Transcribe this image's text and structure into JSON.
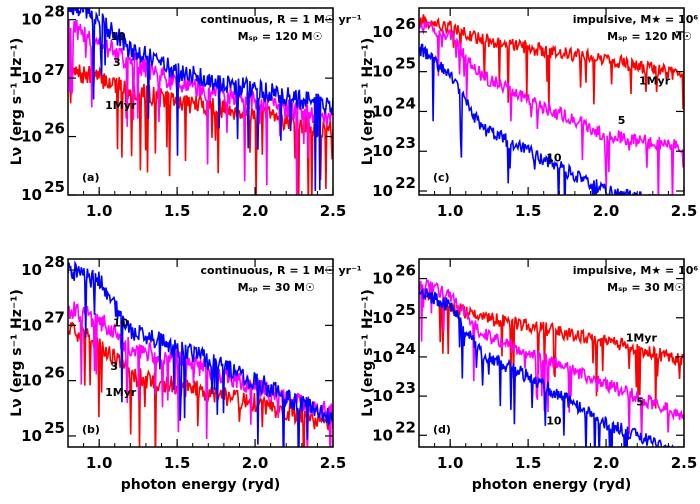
{
  "chart_data": [
    {
      "type": "line",
      "panel": "(a)",
      "annotation": [
        "continuous,  R = 1 M☉ yr⁻¹",
        "Mₛₚ = 120 M☉"
      ],
      "xlabel": "",
      "ylabel": "Lν  (erg s⁻¹ Hz⁻¹)",
      "xlim": [
        0.8,
        2.5
      ],
      "ylim_log10": [
        25,
        28.2
      ],
      "yscale": "log",
      "xticks": [
        "1.0",
        "1.5",
        "2.0",
        "2.5"
      ],
      "yticks": [
        {
          "base": "10",
          "exp": "25"
        },
        {
          "base": "10",
          "exp": "26"
        },
        {
          "base": "10",
          "exp": "27"
        },
        {
          "base": "10",
          "exp": "28"
        }
      ],
      "series": [
        {
          "name": "1Myr",
          "color": "#ff0000",
          "x": [
            0.8,
            1.0,
            1.2,
            1.5,
            2.0,
            2.5
          ],
          "log10_y": [
            27.1,
            27.0,
            26.8,
            26.6,
            26.4,
            26.1
          ]
        },
        {
          "name": "3",
          "color": "#ff00ff",
          "x": [
            0.8,
            1.0,
            1.2,
            1.5,
            2.0,
            2.5
          ],
          "log10_y": [
            27.9,
            27.6,
            27.3,
            26.9,
            26.6,
            26.3
          ]
        },
        {
          "name": "10",
          "color": "#0000ff",
          "x": [
            0.8,
            1.0,
            1.2,
            1.5,
            2.0,
            2.5
          ],
          "log10_y": [
            28.3,
            28.0,
            27.5,
            27.1,
            26.8,
            26.5
          ]
        }
      ]
    },
    {
      "type": "line",
      "panel": "(c)",
      "annotation": [
        "impulsive,  M★ = 10⁶ M☉",
        "Mₛₚ = 120 M☉"
      ],
      "xlabel": "",
      "ylabel": "Lν  (erg s⁻¹ Hz⁻¹)",
      "xlim": [
        0.8,
        2.5
      ],
      "ylim_log10": [
        21.9,
        26.6
      ],
      "yscale": "log",
      "xticks": [
        "1.0",
        "1.5",
        "2.0",
        "2.5"
      ],
      "yticks": [
        {
          "base": "10",
          "exp": "22"
        },
        {
          "base": "10",
          "exp": "23"
        },
        {
          "base": "10",
          "exp": "24"
        },
        {
          "base": "10",
          "exp": "25"
        },
        {
          "base": "10",
          "exp": "26"
        }
      ],
      "series": [
        {
          "name": "1Myr",
          "color": "#ff0000",
          "x": [
            0.8,
            1.0,
            1.2,
            1.5,
            2.0,
            2.5
          ],
          "log10_y": [
            26.3,
            26.1,
            25.8,
            25.6,
            25.3,
            24.9
          ]
        },
        {
          "name": "5",
          "color": "#ff00ff",
          "x": [
            0.8,
            1.0,
            1.2,
            1.5,
            2.0,
            2.5
          ],
          "log10_y": [
            26.2,
            25.9,
            24.9,
            24.3,
            23.4,
            23.1
          ]
        },
        {
          "name": "10",
          "color": "#0000ff",
          "x": [
            0.8,
            1.0,
            1.2,
            1.5,
            2.0,
            2.5
          ],
          "log10_y": [
            25.6,
            24.9,
            23.6,
            23.0,
            22.0,
            21.6
          ]
        }
      ]
    },
    {
      "type": "line",
      "panel": "(b)",
      "annotation": [
        "continuous,  R = 1 M☉ yr⁻¹",
        "Mₛₚ = 30 M☉"
      ],
      "xlabel": "photon energy  (ryd)",
      "ylabel": "Lν  (erg s⁻¹ Hz⁻¹)",
      "xlim": [
        0.8,
        2.5
      ],
      "ylim_log10": [
        24.8,
        28.2
      ],
      "yscale": "log",
      "xticks": [
        "1.0",
        "1.5",
        "2.0",
        "2.5"
      ],
      "yticks": [
        {
          "base": "10",
          "exp": "25"
        },
        {
          "base": "10",
          "exp": "26"
        },
        {
          "base": "10",
          "exp": "27"
        },
        {
          "base": "10",
          "exp": "28"
        }
      ],
      "series": [
        {
          "name": "1Myr",
          "color": "#ff0000",
          "x": [
            0.8,
            1.0,
            1.2,
            1.5,
            2.0,
            2.5
          ],
          "log10_y": [
            26.9,
            26.7,
            26.1,
            25.9,
            25.6,
            25.2
          ]
        },
        {
          "name": "3",
          "color": "#ff00ff",
          "x": [
            0.8,
            1.0,
            1.2,
            1.5,
            2.0,
            2.5
          ],
          "log10_y": [
            27.3,
            27.1,
            26.6,
            26.4,
            25.9,
            25.4
          ]
        },
        {
          "name": "10",
          "color": "#0000ff",
          "x": [
            0.8,
            1.0,
            1.2,
            1.5,
            2.0,
            2.5
          ],
          "log10_y": [
            28.0,
            27.8,
            26.9,
            26.6,
            26.0,
            25.3
          ]
        }
      ]
    },
    {
      "type": "line",
      "panel": "(d)",
      "annotation": [
        "impulsive,  M★ = 10⁶ M☉",
        "Mₛₚ = 30 M☉"
      ],
      "xlabel": "photon energy  (ryd)",
      "ylabel": "Lν  (erg s⁻¹ Hz⁻¹)",
      "xlim": [
        0.8,
        2.5
      ],
      "ylim_log10": [
        21.7,
        26.5
      ],
      "yscale": "log",
      "xticks": [
        "1.0",
        "1.5",
        "2.0",
        "2.5"
      ],
      "yticks": [
        {
          "base": "10",
          "exp": "22"
        },
        {
          "base": "10",
          "exp": "23"
        },
        {
          "base": "10",
          "exp": "24"
        },
        {
          "base": "10",
          "exp": "25"
        },
        {
          "base": "10",
          "exp": "26"
        }
      ],
      "series": [
        {
          "name": "1Myr",
          "color": "#ff0000",
          "x": [
            0.8,
            1.0,
            1.2,
            1.5,
            2.0,
            2.5
          ],
          "log10_y": [
            25.7,
            25.3,
            25.0,
            24.8,
            24.4,
            23.9
          ]
        },
        {
          "name": "5",
          "color": "#ff00ff",
          "x": [
            0.8,
            1.0,
            1.2,
            1.5,
            2.0,
            2.5
          ],
          "log10_y": [
            25.9,
            25.6,
            24.6,
            24.1,
            23.3,
            22.5
          ]
        },
        {
          "name": "10",
          "color": "#0000ff",
          "x": [
            0.8,
            1.0,
            1.2,
            1.5,
            2.0,
            2.5
          ],
          "log10_y": [
            25.7,
            25.3,
            24.1,
            23.5,
            22.3,
            21.5
          ]
        }
      ]
    }
  ]
}
